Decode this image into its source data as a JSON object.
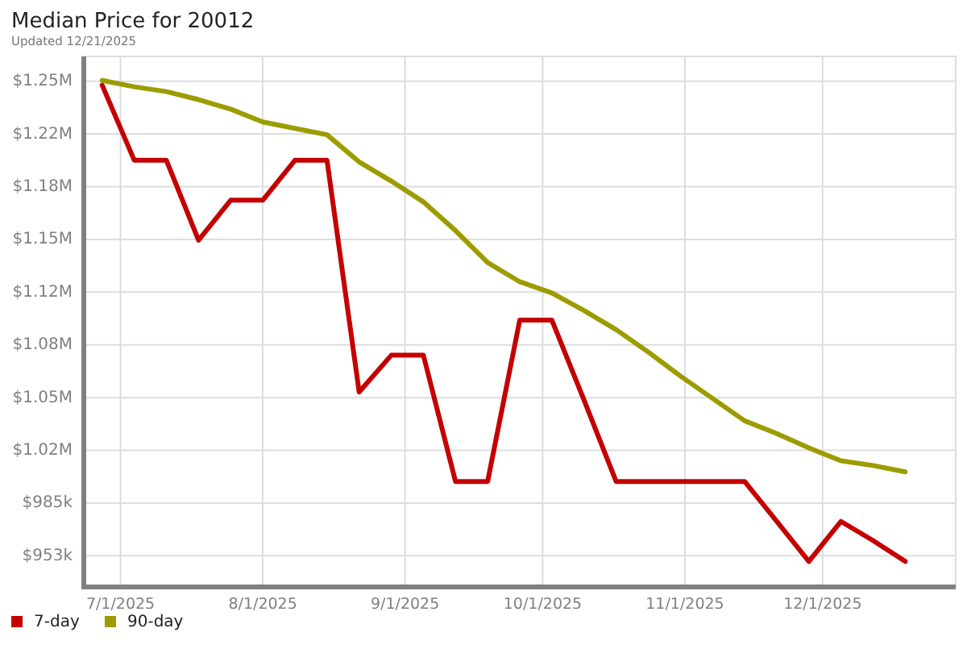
{
  "chart_data": {
    "type": "line",
    "title": "Median Price for 20012",
    "subtitle": "Updated 12/21/2025",
    "x": [
      "2025-06-27",
      "2025-07-04",
      "2025-07-11",
      "2025-07-18",
      "2025-07-25",
      "2025-08-01",
      "2025-08-08",
      "2025-08-15",
      "2025-08-22",
      "2025-08-29",
      "2025-09-05",
      "2025-09-12",
      "2025-09-19",
      "2025-09-26",
      "2025-10-03",
      "2025-10-10",
      "2025-10-17",
      "2025-10-24",
      "2025-10-31",
      "2025-11-07",
      "2025-11-14",
      "2025-11-21",
      "2025-11-28",
      "2025-12-05",
      "2025-12-12",
      "2025-12-19"
    ],
    "series": [
      {
        "name": "7-day",
        "color": "#c40000",
        "values": [
          1247000,
          1200000,
          1200000,
          1150000,
          1175000,
          1175000,
          1200000,
          1200000,
          1055000,
          1078000,
          1078000,
          999000,
          999000,
          1100000,
          1100000,
          1050000,
          999000,
          999000,
          999000,
          999000,
          999000,
          974000,
          949000,
          974000,
          962000,
          949000
        ]
      },
      {
        "name": "90-day",
        "color": "#9c9c00",
        "values": [
          1250000,
          1246000,
          1243000,
          1238000,
          1232000,
          1224000,
          1220000,
          1216000,
          1199000,
          1187000,
          1174000,
          1156000,
          1136000,
          1124000,
          1117000,
          1106000,
          1094000,
          1080000,
          1065000,
          1051000,
          1037000,
          1029000,
          1020000,
          1012000,
          1009000,
          1005000
        ]
      }
    ],
    "xlim": [
      "2025-06-23",
      "2025-12-30"
    ],
    "xticks": [
      {
        "value": "2025-07-01",
        "label": "7/1/2025"
      },
      {
        "value": "2025-08-01",
        "label": "8/1/2025"
      },
      {
        "value": "2025-09-01",
        "label": "9/1/2025"
      },
      {
        "value": "2025-10-01",
        "label": "10/1/2025"
      },
      {
        "value": "2025-11-01",
        "label": "11/1/2025"
      },
      {
        "value": "2025-12-01",
        "label": "12/1/2025"
      }
    ],
    "ylim": [
      933000,
      1265000
    ],
    "yticks": [
      {
        "value": 952500,
        "label": "$953k"
      },
      {
        "value": 985500,
        "label": "$985k"
      },
      {
        "value": 1018500,
        "label": "$1.02M"
      },
      {
        "value": 1051500,
        "label": "$1.05M"
      },
      {
        "value": 1084500,
        "label": "$1.08M"
      },
      {
        "value": 1117500,
        "label": "$1.12M"
      },
      {
        "value": 1150500,
        "label": "$1.15M"
      },
      {
        "value": 1183500,
        "label": "$1.18M"
      },
      {
        "value": 1216500,
        "label": "$1.22M"
      },
      {
        "value": 1249500,
        "label": "$1.25M"
      }
    ],
    "grid": true,
    "legend": "bottom left"
  }
}
